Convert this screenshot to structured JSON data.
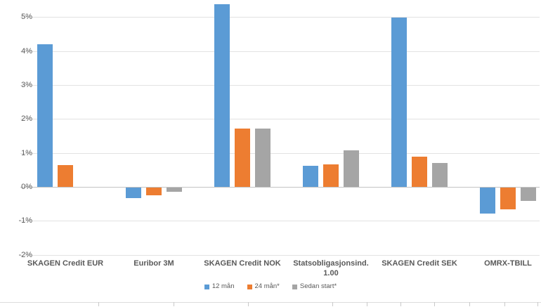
{
  "chart_data": {
    "type": "bar",
    "title": "",
    "categories": [
      "SKAGEN Credit EUR",
      "Euribor 3M",
      "SKAGEN Credit NOK",
      "Statsobligasjonsind. 1.00",
      "SKAGEN Credit SEK",
      "OMRX-TBILL"
    ],
    "series": [
      {
        "name": "12 mån",
        "color": "#5B9BD5",
        "values": [
          4.21,
          -0.32,
          5.37,
          0.62,
          4.98,
          -0.77
        ]
      },
      {
        "name": "24 mån*",
        "color": "#ED7D31",
        "values": [
          0.64,
          -0.22,
          1.72,
          0.67,
          0.89,
          -0.64
        ]
      },
      {
        "name": "Sedan start*",
        "color": "#A5A5A5",
        "values": [
          null,
          -0.12,
          1.71,
          1.08,
          0.71,
          -0.39
        ]
      }
    ],
    "y_axis": {
      "tick_labels": [
        "5%",
        "4%",
        "3%",
        "2%",
        "1%",
        "0%",
        "-1%",
        "-2%"
      ],
      "tick_values": [
        5,
        4,
        3,
        2,
        1,
        0,
        -1,
        -2
      ],
      "unit": "percent"
    },
    "ylim": [
      -2,
      5.5
    ],
    "grid": true,
    "legend_position": "bottom",
    "background": "#ffffff"
  }
}
